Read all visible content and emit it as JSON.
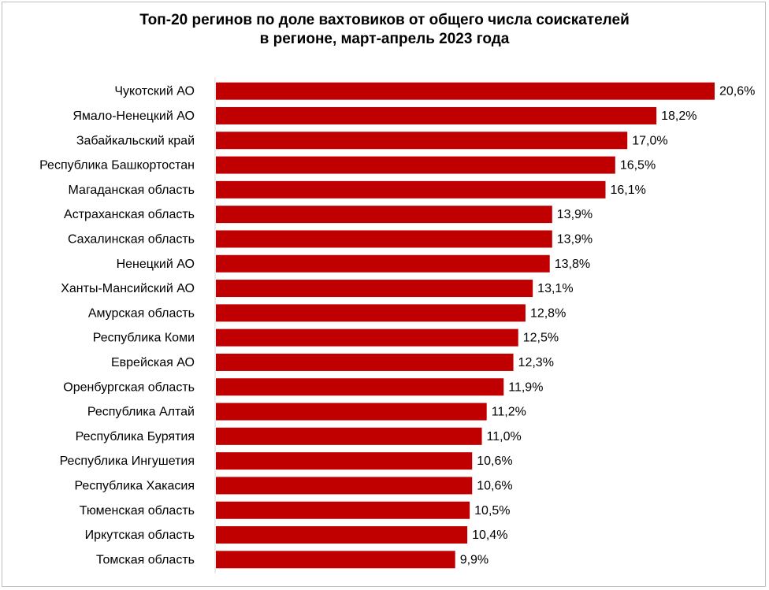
{
  "chart_data": {
    "type": "bar",
    "orientation": "horizontal",
    "title_line1": "Топ-20 регинов по доле вахтовиков от общего числа соискателей",
    "title_line2": "в регионе, март-апрель 2023 года",
    "xlabel": "",
    "ylabel": "",
    "grid": false,
    "legend": "none",
    "bar_color": "#c00000",
    "xlim": [
      0,
      20.6
    ],
    "categories": [
      "Чукотский АО",
      "Ямало-Ненецкий АО",
      "Забайкальский край",
      "Республика Башкортостан",
      "Магаданская область",
      "Астраханская область",
      "Сахалинская область",
      "Ненецкий АО",
      "Ханты-Мансийский АО",
      "Амурская область",
      "Республика Коми",
      "Еврейская АО",
      "Оренбургская область",
      "Республика Алтай",
      "Республика Бурятия",
      "Республика Ингушетия",
      "Республика Хакасия",
      "Тюменская область",
      "Иркутская область",
      "Томская область"
    ],
    "values": [
      20.6,
      18.2,
      17.0,
      16.5,
      16.1,
      13.9,
      13.9,
      13.8,
      13.1,
      12.8,
      12.5,
      12.3,
      11.9,
      11.2,
      11.0,
      10.6,
      10.6,
      10.5,
      10.4,
      9.9
    ],
    "value_labels": [
      "20,6%",
      "18,2%",
      "17,0%",
      "16,5%",
      "16,1%",
      "13,9%",
      "13,9%",
      "13,8%",
      "13,1%",
      "12,8%",
      "12,5%",
      "12,3%",
      "11,9%",
      "11,2%",
      "11,0%",
      "10,6%",
      "10,6%",
      "10,5%",
      "10,4%",
      "9,9%"
    ]
  }
}
